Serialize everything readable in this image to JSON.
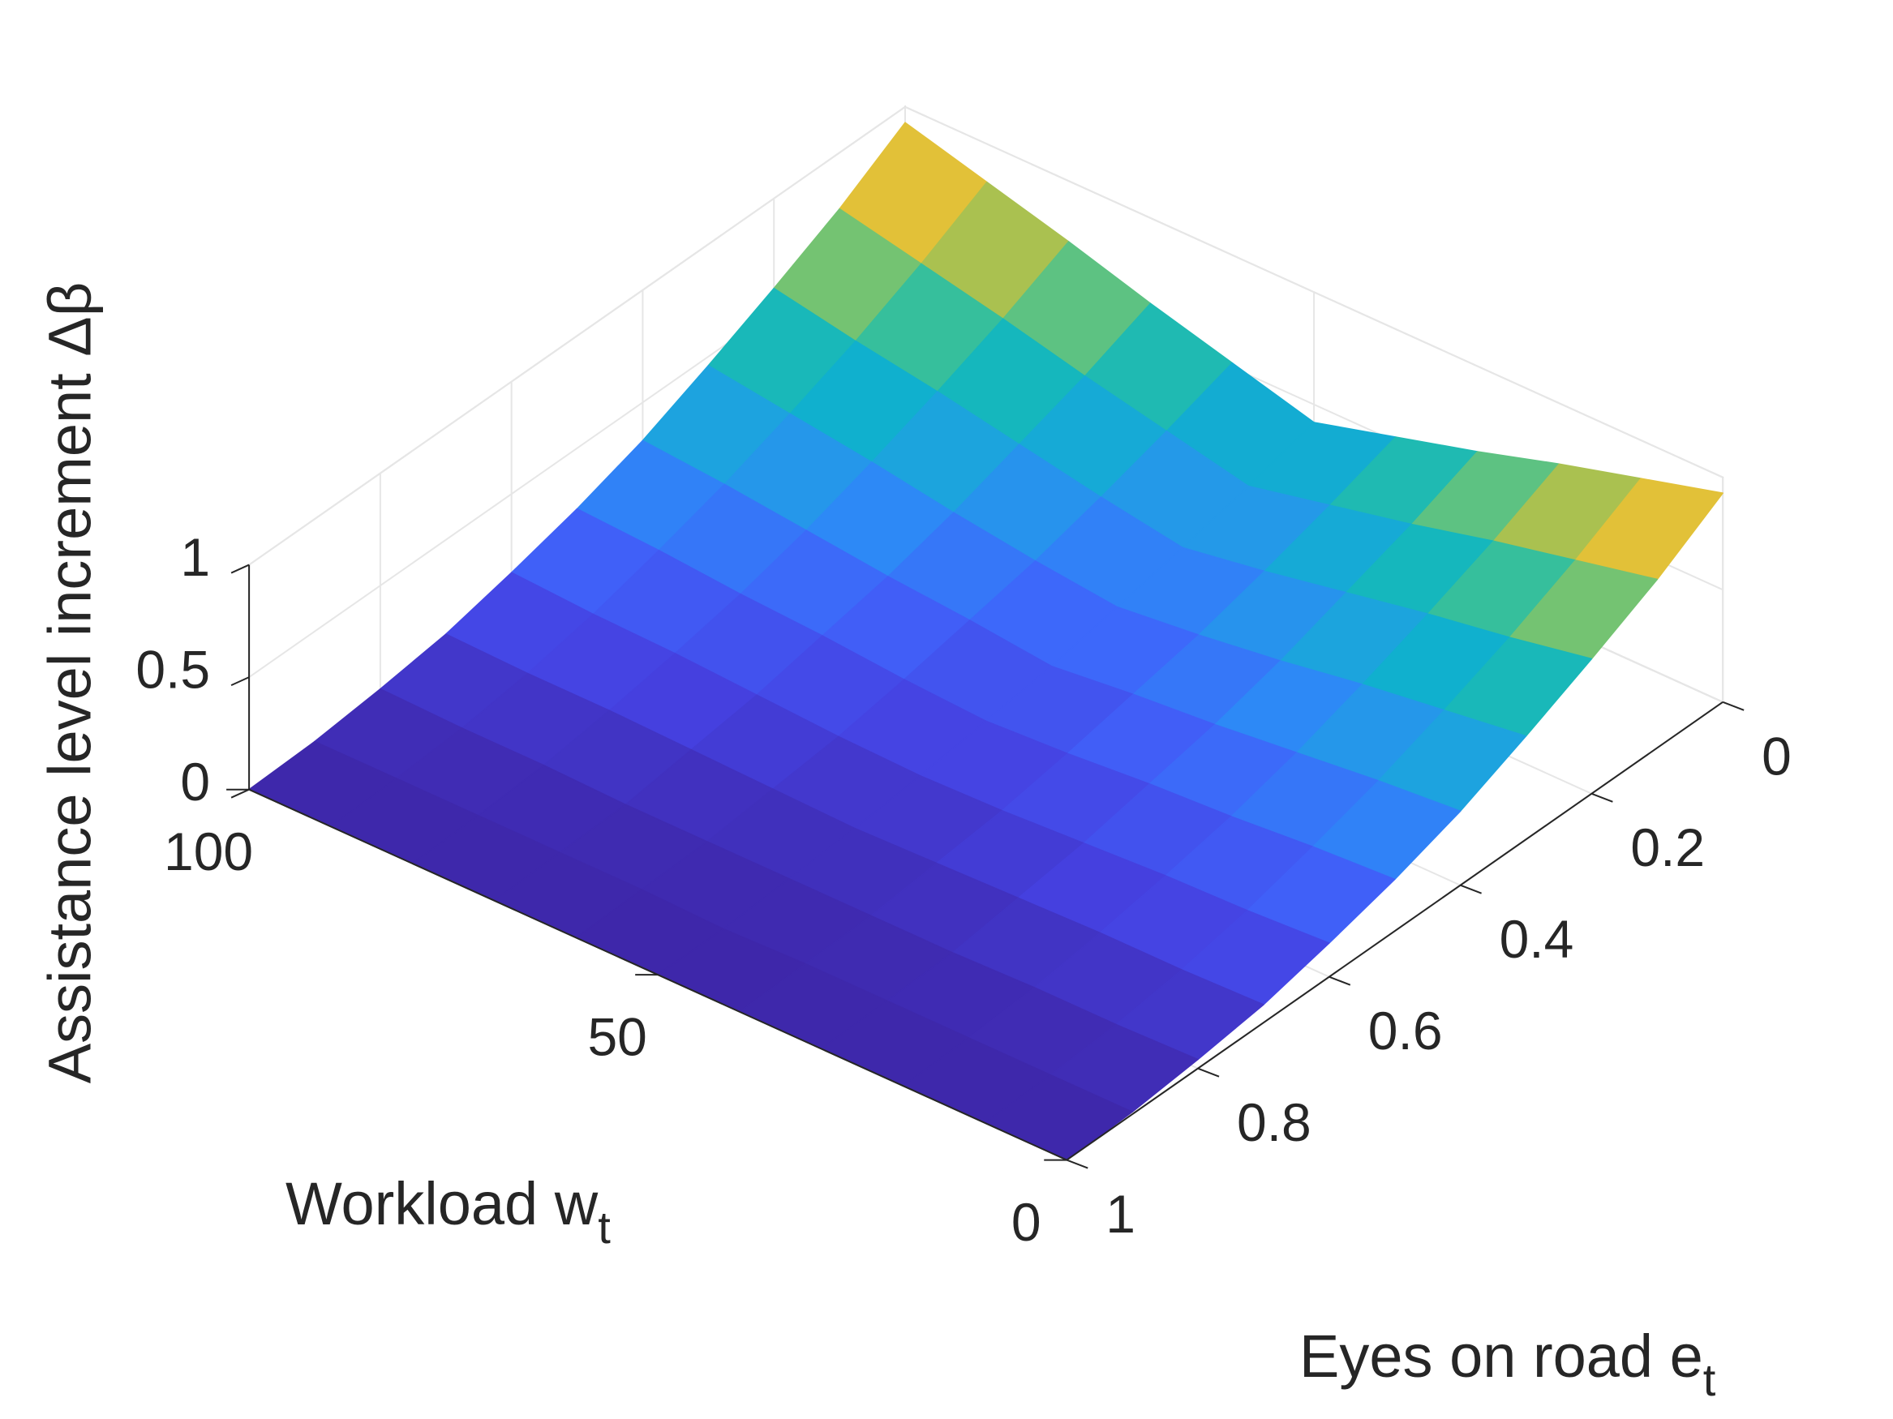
{
  "chart_data": {
    "type": "surface",
    "xlabel": "Eyes on road e",
    "xlabel_sub": "t",
    "ylabel": "Workload w",
    "ylabel_sub": "t",
    "zlabel": "Assistance level increment Δβ",
    "x": [
      0,
      0.1,
      0.2,
      0.3,
      0.4,
      0.5,
      0.6,
      0.7,
      0.8,
      0.9,
      1
    ],
    "y": [
      0,
      10,
      20,
      30,
      40,
      50,
      60,
      70,
      80,
      90,
      100
    ],
    "z": [
      [
        0.93,
        0.83,
        0.73,
        0.62,
        0.52,
        0.42,
        0.52,
        0.62,
        0.73,
        0.83,
        0.93
      ],
      [
        0.75,
        0.67,
        0.59,
        0.5,
        0.42,
        0.34,
        0.42,
        0.5,
        0.59,
        0.67,
        0.75
      ],
      [
        0.6,
        0.53,
        0.47,
        0.4,
        0.33,
        0.27,
        0.33,
        0.4,
        0.47,
        0.53,
        0.6
      ],
      [
        0.46,
        0.41,
        0.36,
        0.3,
        0.25,
        0.21,
        0.25,
        0.3,
        0.36,
        0.41,
        0.46
      ],
      [
        0.33,
        0.3,
        0.26,
        0.22,
        0.19,
        0.15,
        0.19,
        0.22,
        0.26,
        0.3,
        0.33
      ],
      [
        0.23,
        0.21,
        0.18,
        0.16,
        0.13,
        0.11,
        0.13,
        0.16,
        0.18,
        0.21,
        0.23
      ],
      [
        0.15,
        0.13,
        0.12,
        0.1,
        0.08,
        0.07,
        0.08,
        0.1,
        0.12,
        0.13,
        0.15
      ],
      [
        0.08,
        0.07,
        0.07,
        0.06,
        0.05,
        0.04,
        0.05,
        0.06,
        0.07,
        0.07,
        0.08
      ],
      [
        0.04,
        0.03,
        0.03,
        0.02,
        0.02,
        0.02,
        0.02,
        0.02,
        0.03,
        0.03,
        0.04
      ],
      [
        0.01,
        0.01,
        0.01,
        0.01,
        0.01,
        0,
        0.01,
        0.01,
        0.01,
        0.01,
        0.01
      ],
      [
        0,
        0,
        0,
        0,
        0,
        0,
        0,
        0,
        0,
        0,
        0
      ]
    ],
    "xlim": [
      0,
      1
    ],
    "xticks": [
      0,
      0.2,
      0.4,
      0.6,
      0.8,
      1
    ],
    "ylim": [
      0,
      100
    ],
    "yticks": [
      0,
      50,
      100
    ],
    "zlim": [
      0,
      1
    ],
    "zticks": [
      0,
      0.5,
      1
    ],
    "grid": true,
    "colormap": [
      "#3e26a8",
      "#4542e2",
      "#4062fa",
      "#2e87f7",
      "#1ea2e0",
      "#0bb4c8",
      "#30bfa0",
      "#80c46a",
      "#c8bf3d",
      "#f8c233",
      "#f9fb14"
    ]
  }
}
